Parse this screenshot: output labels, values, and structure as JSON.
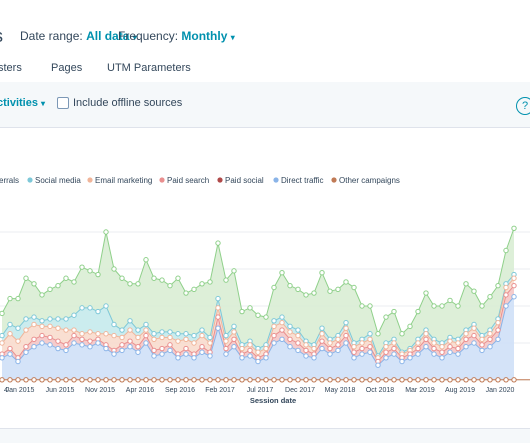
{
  "header": {
    "title_fragment": "s",
    "date_range_label": "Date range:",
    "date_range_value": "All data",
    "frequency_label": "Frequency:",
    "frequency_value": "Monthly"
  },
  "tabs": [
    {
      "label": "sters"
    },
    {
      "label": "Pages"
    },
    {
      "label": "UTM Parameters"
    }
  ],
  "toolbar": {
    "filter_link": "ctivities",
    "offline_label": "Include offline sources"
  },
  "chart_data": {
    "type": "area",
    "xlabel": "Session date",
    "ylabel": "",
    "ylim": [
      0,
      100
    ],
    "grid": true,
    "legend_position": "top-left",
    "legend": [
      {
        "name": "errals",
        "color": "#5ec4a4"
      },
      {
        "name": "Social media",
        "color": "#7ec8d8"
      },
      {
        "name": "Email marketing",
        "color": "#f0b59a"
      },
      {
        "name": "Paid search",
        "color": "#e98f8f"
      },
      {
        "name": "Paid social",
        "color": "#b04a4a"
      },
      {
        "name": "Direct traffic",
        "color": "#8ab4e8"
      },
      {
        "name": "Other campaigns",
        "color": "#c07a55"
      }
    ],
    "x_tick_labels": [
      "4",
      "Jan 2015",
      "Jun 2015",
      "Nov 2015",
      "Apr 2016",
      "Sep 2016",
      "Feb 2017",
      "Jul 2017",
      "Dec 2017",
      "May 2018",
      "Oct 2018",
      "Mar 2019",
      "Aug 2019",
      "Jan 2020"
    ],
    "x_tick_index": [
      0,
      2,
      7,
      12,
      17,
      22,
      27,
      32,
      37,
      42,
      47,
      52,
      57,
      62
    ],
    "series": [
      {
        "name": "Direct traffic",
        "color": "#8ab4e8",
        "values": [
          12,
          14,
          10,
          15,
          18,
          20,
          19,
          17,
          16,
          20,
          19,
          18,
          20,
          17,
          14,
          16,
          18,
          15,
          20,
          13,
          14,
          16,
          12,
          14,
          12,
          15,
          13,
          28,
          14,
          18,
          12,
          13,
          10,
          12,
          20,
          22,
          18,
          16,
          13,
          12,
          17,
          14,
          16,
          20,
          12,
          14,
          15,
          8,
          12,
          14,
          10,
          12,
          14,
          18,
          14,
          12,
          15,
          14,
          18,
          20,
          16,
          18,
          22,
          40,
          45
        ]
      },
      {
        "name": "Paid search",
        "color": "#e98f8f",
        "values": [
          2,
          3,
          2,
          3,
          4,
          4,
          4,
          4,
          3,
          4,
          3,
          3,
          2,
          2,
          2,
          3,
          3,
          3,
          4,
          3,
          3,
          3,
          2,
          3,
          2,
          3,
          2,
          6,
          3,
          4,
          2,
          3,
          2,
          2,
          4,
          5,
          4,
          4,
          3,
          2,
          4,
          3,
          3,
          4,
          3,
          3,
          3,
          2,
          3,
          3,
          2,
          2,
          3,
          4,
          3,
          3,
          3,
          3,
          4,
          4,
          3,
          4,
          5,
          6,
          6
        ]
      },
      {
        "name": "Email marketing",
        "color": "#f0b59a",
        "values": [
          6,
          8,
          9,
          9,
          8,
          5,
          6,
          7,
          8,
          3,
          3,
          5,
          3,
          6,
          8,
          4,
          6,
          5,
          3,
          6,
          6,
          4,
          7,
          5,
          6,
          6,
          5,
          5,
          4,
          4,
          3,
          3,
          3,
          3,
          5,
          4,
          4,
          4,
          3,
          3,
          4,
          3,
          3,
          4,
          3,
          3,
          4,
          2,
          3,
          3,
          2,
          2,
          3,
          3,
          3,
          3,
          3,
          3,
          3,
          4,
          3,
          3,
          4,
          4,
          4
        ]
      },
      {
        "name": "Social media",
        "color": "#7ec8d8",
        "values": [
          4,
          5,
          7,
          6,
          4,
          3,
          4,
          5,
          6,
          8,
          14,
          13,
          12,
          15,
          6,
          4,
          5,
          4,
          3,
          3,
          3,
          3,
          4,
          3,
          4,
          3,
          3,
          5,
          3,
          3,
          2,
          2,
          2,
          2,
          3,
          3,
          3,
          3,
          2,
          2,
          3,
          2,
          2,
          3,
          2,
          2,
          3,
          1,
          2,
          2,
          1,
          1,
          2,
          2,
          2,
          2,
          2,
          2,
          2,
          2,
          2,
          2,
          2,
          2,
          2
        ]
      },
      {
        "name": "errals",
        "color": "#5ec4a4",
        "values": [
          12,
          14,
          16,
          22,
          18,
          14,
          16,
          18,
          22,
          18,
          22,
          20,
          20,
          40,
          30,
          28,
          20,
          25,
          35,
          30,
          28,
          25,
          30,
          22,
          25,
          25,
          30,
          30,
          30,
          30,
          18,
          18,
          18,
          15,
          18,
          24,
          22,
          22,
          25,
          28,
          30,
          26,
          25,
          22,
          30,
          18,
          15,
          12,
          14,
          15,
          10,
          12,
          15,
          20,
          18,
          20,
          20,
          18,
          25,
          18,
          16,
          18,
          18,
          18,
          25
        ]
      },
      {
        "name": "Other campaigns",
        "color": "#c07a55",
        "values": [
          1,
          1,
          1,
          1,
          1,
          1,
          1,
          1,
          1,
          1,
          1,
          1,
          1,
          1,
          1,
          1,
          1,
          1,
          1,
          1,
          1,
          1,
          1,
          1,
          1,
          1,
          1,
          1,
          1,
          1,
          1,
          1,
          1,
          1,
          1,
          1,
          1,
          1,
          1,
          1,
          1,
          1,
          1,
          1,
          1,
          1,
          1,
          1,
          1,
          1,
          1,
          1,
          1,
          1,
          1,
          1,
          1,
          1,
          1,
          1,
          1,
          1,
          1,
          1,
          1
        ]
      }
    ]
  }
}
